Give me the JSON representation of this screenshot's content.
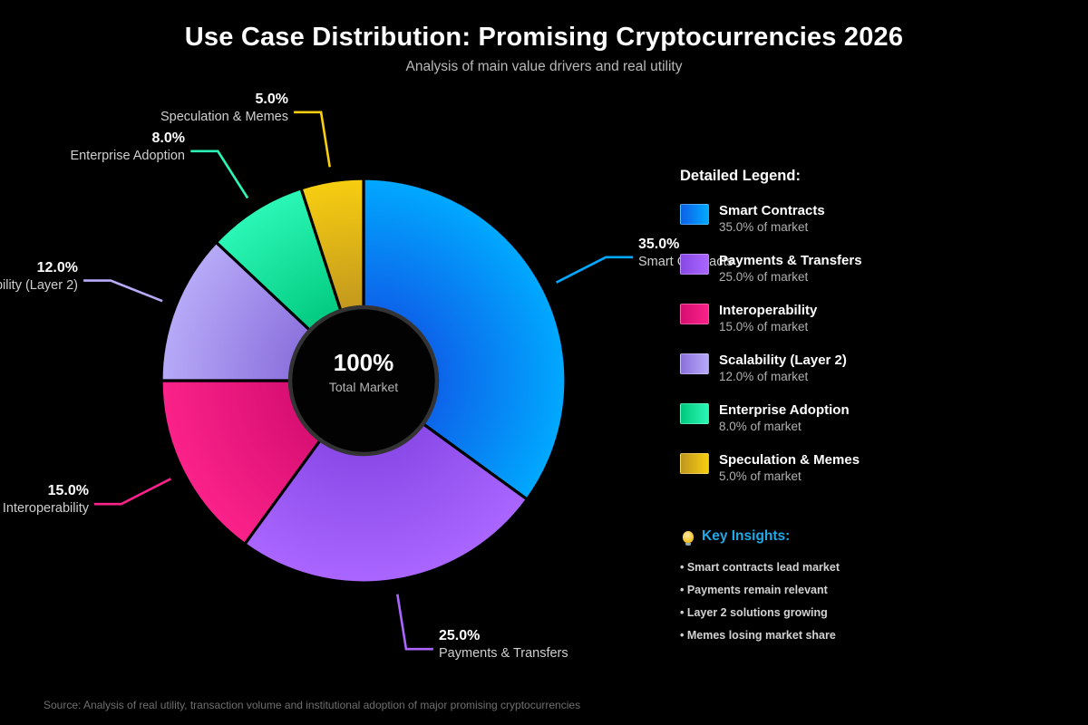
{
  "legend": {
    "title": "Detailed Legend:"
  },
  "insights": {
    "title": "Key Insights:",
    "accent_color": "#1FA9E8",
    "icon": "lightbulb-icon",
    "items": [
      "Smart contracts lead market",
      "Payments remain relevant",
      "Layer 2 solutions growing",
      "Memes losing market share"
    ]
  },
  "source": "Source: Analysis of real utility, transaction volume and institutional adoption of major promising cryptocurrencies",
  "chart_data": {
    "type": "pie",
    "title": "Use Case Distribution: Promising Cryptocurrencies 2026",
    "subtitle": "Analysis of main value drivers and real utility",
    "donut": true,
    "start_angle": "top",
    "direction": "clockwise",
    "categories": [
      "Smart Contracts",
      "Payments & Transfers",
      "Interoperability",
      "Scalability (Layer 2)",
      "Enterprise Adoption",
      "Speculation & Memes"
    ],
    "values": [
      35.0,
      25.0,
      15.0,
      12.0,
      8.0,
      5.0
    ],
    "value_suffix": "%",
    "legend_sub_suffix": "% of market",
    "colors": [
      {
        "start": "#0E5FE8",
        "end": "#00A9FF"
      },
      {
        "start": "#8848E6",
        "end": "#AA66FF"
      },
      {
        "start": "#D60E72",
        "end": "#FB2289"
      },
      {
        "start": "#8A6FDC",
        "end": "#B7AAF8"
      },
      {
        "start": "#00C87D",
        "end": "#2BF7B6"
      },
      {
        "start": "#C0951F",
        "end": "#F7CE10"
      }
    ],
    "center": {
      "value": "100%",
      "label": "Total Market"
    },
    "background": "#000000"
  }
}
